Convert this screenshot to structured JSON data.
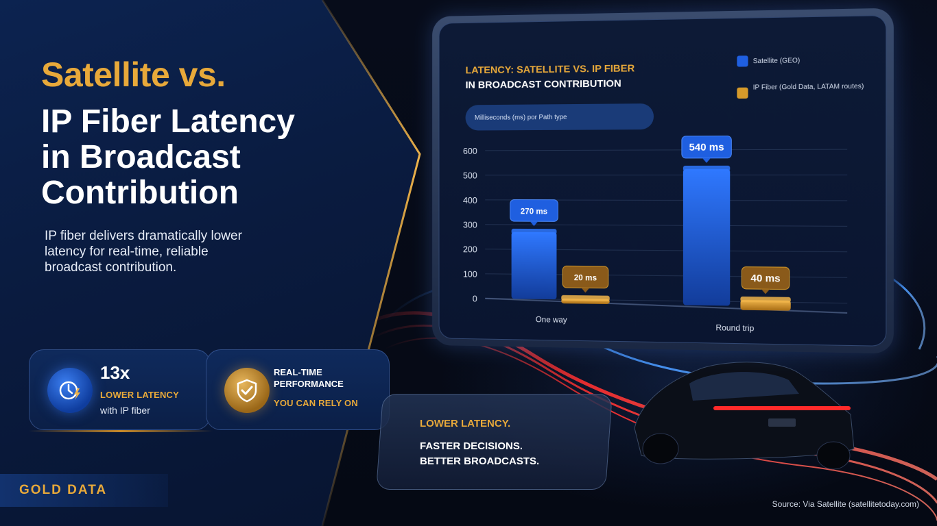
{
  "hero": {
    "title_gold": "Satellite vs.",
    "title_white_1": "IP Fiber Latency",
    "title_white_2": "in Broadcast",
    "title_white_3": "Contribution",
    "subtitle_1": "IP fiber delivers dramatically lower",
    "subtitle_2": "latency for real-time, reliable",
    "subtitle_3": "broadcast contribution."
  },
  "stats": {
    "card1": {
      "big": "13x",
      "gold": "LOWER LATENCY",
      "small": "with IP fiber",
      "icon": "clock-lightning-icon"
    },
    "card2": {
      "line1": "REAL-TIME",
      "line2": "PERFORMANCE",
      "gold": "YOU CAN RELY ON",
      "icon": "shield-check-icon"
    }
  },
  "brand": {
    "name": "GOLD DATA"
  },
  "highlight": {
    "gold": "LOWER LATENCY.",
    "line1": "FASTER DECISIONS.",
    "line2": "BETTER BROADCASTS."
  },
  "source": "Source: Via Satellite (satellitetoday.com)",
  "colors": {
    "accent_gold": "#e8a93a",
    "satellite_blue": "#1f5fe0",
    "fiber_gold": "#d69a2a",
    "panel_navy": "#0a1b3f"
  },
  "chart_data": {
    "type": "bar",
    "title_line1": "LATENCY: SATELLITE VS. IP FIBER",
    "title_line2": "IN BROADCAST CONTRIBUTION",
    "ylabel": "Milliseconds (ms) por Path type",
    "categories": [
      "One way",
      "Round trip"
    ],
    "series": [
      {
        "name": "Satellite (GEO)",
        "values": [
          270,
          540
        ],
        "labels": [
          "270 ms",
          "540 ms"
        ],
        "color": "#1f5fe0"
      },
      {
        "name": "IP Fiber (Gold Data, LATAM routes)",
        "values": [
          20,
          40
        ],
        "labels": [
          "20 ms",
          "40 ms"
        ],
        "color": "#d69a2a"
      }
    ],
    "yticks": [
      0,
      100,
      200,
      300,
      400,
      500,
      600
    ],
    "ylim": [
      0,
      600
    ],
    "grid": true,
    "legend_position": "top-right"
  }
}
